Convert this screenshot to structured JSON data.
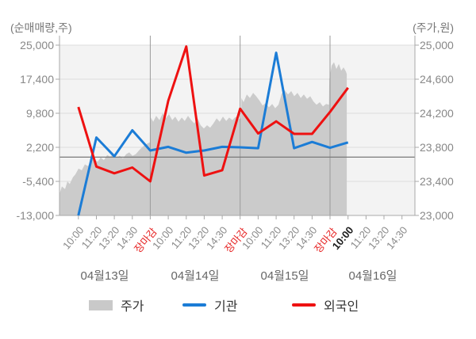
{
  "header": {
    "left_axis_title": "(순매매량,주)",
    "right_axis_title": "(주가,원)"
  },
  "y_axis_left": {
    "labels": [
      "25,000",
      "17,400",
      "9,800",
      "2,200",
      "-5,400",
      "-13,000"
    ]
  },
  "y_axis_right": {
    "labels": [
      "25,000",
      "24,600",
      "24,200",
      "23,800",
      "23,400",
      "23,000"
    ]
  },
  "x_axis": {
    "time_labels": [
      "10:00",
      "11:20",
      "13:20",
      "14:30",
      "장마감",
      "10:00",
      "11:20",
      "13:20",
      "14:30",
      "장마감",
      "10:00",
      "11:20",
      "13:20",
      "14:30",
      "장마감",
      "10:00",
      "11:20",
      "13:20",
      "14:30"
    ],
    "closing_label": "장마감",
    "current_index": 15,
    "date_labels": [
      "04월13일",
      "04월14일",
      "04월15일",
      "04월16일"
    ]
  },
  "legend": [
    {
      "label": "주가",
      "color": "#c9c9c9",
      "type": "area"
    },
    {
      "label": "기관",
      "color": "#1b7cd6",
      "type": "line"
    },
    {
      "label": "외국인",
      "color": "#ee1111",
      "type": "line"
    }
  ],
  "colors": {
    "plot_bg": "#f3f3f3",
    "grid": "#dcdcdc",
    "separator": "#9a9a9a",
    "zero_line": "#7a7a7a",
    "axis": "#a8a8a8",
    "area_fill": "#cbcbcb",
    "institution_blue": "#1b7cd6",
    "foreigner_red": "#ee1111",
    "close_label_red": "#e62222"
  },
  "chart_data": {
    "type": "line",
    "title": "",
    "left_axis": {
      "title": "(순매매량,주)",
      "range": [
        -13000,
        25000
      ],
      "ticks": [
        25000,
        17400,
        9800,
        2200,
        -5400,
        -13000
      ]
    },
    "right_axis": {
      "title": "(주가,원)",
      "range": [
        23000,
        25000
      ],
      "ticks": [
        25000,
        24600,
        24200,
        23800,
        23400,
        23000
      ]
    },
    "categories": [
      "04월13일 10:00",
      "04월13일 11:20",
      "04월13일 13:20",
      "04월13일 14:30",
      "04월13일 장마감",
      "04월14일 10:00",
      "04월14일 11:20",
      "04월14일 13:20",
      "04월14일 14:30",
      "04월14일 장마감",
      "04월15일 10:00",
      "04월15일 11:20",
      "04월15일 13:20",
      "04월15일 14:30",
      "04월15일 장마감",
      "04월16일 10:00",
      "04월16일 11:20",
      "04월16일 13:20",
      "04월16일 14:30"
    ],
    "day_boundary_tick_indices": [
      4,
      9,
      14
    ],
    "zero_line": 0,
    "series": [
      {
        "name": "주가",
        "type": "area",
        "axis": "right",
        "color": "#cbcbcb",
        "points": [
          [
            -1.05,
            23250
          ],
          [
            -0.92,
            23340
          ],
          [
            -0.74,
            23310
          ],
          [
            -0.61,
            23400
          ],
          [
            -0.48,
            23370
          ],
          [
            -0.3,
            23450
          ],
          [
            -0.17,
            23480
          ],
          [
            0.01,
            23550
          ],
          [
            0.19,
            23530
          ],
          [
            0.36,
            23600
          ],
          [
            0.54,
            23580
          ],
          [
            0.71,
            23650
          ],
          [
            0.89,
            23660
          ],
          [
            1.07,
            23630
          ],
          [
            1.24,
            23680
          ],
          [
            1.42,
            23650
          ],
          [
            1.6,
            23710
          ],
          [
            1.77,
            23690
          ],
          [
            1.95,
            23720
          ],
          [
            2.13,
            23680
          ],
          [
            2.3,
            23700
          ],
          [
            2.48,
            23670
          ],
          [
            2.66,
            23720
          ],
          [
            2.83,
            23740
          ],
          [
            3.01,
            23700
          ],
          [
            3.19,
            23720
          ],
          [
            3.36,
            23760
          ],
          [
            3.54,
            23800
          ],
          [
            3.72,
            23830
          ],
          [
            3.89,
            23850
          ],
          [
            4.01,
            23860
          ],
          [
            4.03,
            24150
          ],
          [
            4.16,
            24100
          ],
          [
            4.33,
            24170
          ],
          [
            4.51,
            24120
          ],
          [
            4.69,
            24200
          ],
          [
            4.86,
            24140
          ],
          [
            5.04,
            24190
          ],
          [
            5.22,
            24120
          ],
          [
            5.39,
            24160
          ],
          [
            5.57,
            24100
          ],
          [
            5.75,
            24150
          ],
          [
            5.92,
            24110
          ],
          [
            6.1,
            24170
          ],
          [
            6.27,
            24120
          ],
          [
            6.45,
            24080
          ],
          [
            6.63,
            24140
          ],
          [
            6.8,
            24060
          ],
          [
            6.98,
            24020
          ],
          [
            7.16,
            24060
          ],
          [
            7.33,
            24030
          ],
          [
            7.51,
            24080
          ],
          [
            7.69,
            24140
          ],
          [
            7.86,
            24100
          ],
          [
            8.04,
            24160
          ],
          [
            8.22,
            24110
          ],
          [
            8.39,
            24150
          ],
          [
            8.57,
            24120
          ],
          [
            8.75,
            24160
          ],
          [
            8.92,
            24130
          ],
          [
            9.05,
            24140
          ],
          [
            9.07,
            24380
          ],
          [
            9.19,
            24330
          ],
          [
            9.37,
            24420
          ],
          [
            9.54,
            24380
          ],
          [
            9.72,
            24440
          ],
          [
            9.89,
            24400
          ],
          [
            10.07,
            24350
          ],
          [
            10.25,
            24290
          ],
          [
            10.42,
            24320
          ],
          [
            10.6,
            24270
          ],
          [
            10.78,
            24310
          ],
          [
            10.95,
            24260
          ],
          [
            11.13,
            24300
          ],
          [
            11.31,
            24430
          ],
          [
            11.48,
            24470
          ],
          [
            11.66,
            24420
          ],
          [
            11.84,
            24460
          ],
          [
            12.01,
            24400
          ],
          [
            12.19,
            24440
          ],
          [
            12.37,
            24380
          ],
          [
            12.54,
            24420
          ],
          [
            12.72,
            24370
          ],
          [
            12.9,
            24400
          ],
          [
            13.07,
            24340
          ],
          [
            13.25,
            24300
          ],
          [
            13.43,
            24330
          ],
          [
            13.6,
            24280
          ],
          [
            13.78,
            24310
          ],
          [
            13.94,
            24300
          ],
          [
            13.96,
            24600
          ],
          [
            14.09,
            24760
          ],
          [
            14.22,
            24800
          ],
          [
            14.35,
            24720
          ],
          [
            14.49,
            24780
          ],
          [
            14.62,
            24700
          ],
          [
            14.75,
            24740
          ],
          [
            14.88,
            24690
          ],
          [
            14.93,
            24660
          ]
        ]
      },
      {
        "name": "기관",
        "type": "line",
        "axis": "left",
        "color": "#1b7cd6",
        "values": [
          -13000,
          4400,
          200,
          6000,
          1500,
          2300,
          1000,
          1500,
          2300,
          2200,
          2000,
          23300,
          2000,
          3400,
          2100,
          3300
        ]
      },
      {
        "name": "외국인",
        "type": "line",
        "axis": "left",
        "color": "#ee1111",
        "values": [
          11200,
          -2100,
          -3600,
          -2300,
          -5400,
          12600,
          24700,
          -4100,
          -2900,
          10800,
          5300,
          8000,
          5200,
          5200,
          10100,
          15500
        ]
      }
    ]
  }
}
